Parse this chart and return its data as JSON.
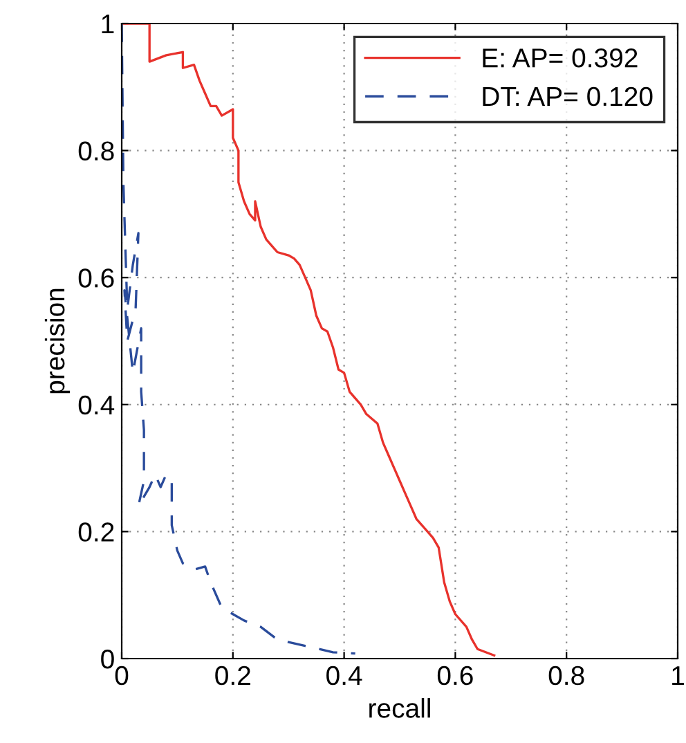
{
  "chart_data": {
    "type": "line",
    "xlabel": "recall",
    "ylabel": "precision",
    "xlim": [
      0,
      1
    ],
    "ylim": [
      0,
      1
    ],
    "xticks": [
      0,
      0.2,
      0.4,
      0.6,
      0.8,
      1
    ],
    "yticks": [
      0,
      0.2,
      0.4,
      0.6,
      0.8,
      1
    ],
    "grid": true,
    "legend": "top right",
    "series": [
      {
        "name": "E: AP= 0.392",
        "color": "#e8322c",
        "line_style": "solid",
        "x": [
          0,
          0.05,
          0.05,
          0.08,
          0.11,
          0.11,
          0.13,
          0.14,
          0.15,
          0.16,
          0.17,
          0.18,
          0.2,
          0.2,
          0.21,
          0.21,
          0.22,
          0.23,
          0.24,
          0.24,
          0.25,
          0.26,
          0.27,
          0.28,
          0.3,
          0.31,
          0.32,
          0.33,
          0.34,
          0.35,
          0.36,
          0.37,
          0.38,
          0.39,
          0.4,
          0.41,
          0.43,
          0.44,
          0.46,
          0.47,
          0.48,
          0.49,
          0.5,
          0.51,
          0.52,
          0.53,
          0.55,
          0.56,
          0.57,
          0.58,
          0.59,
          0.6,
          0.62,
          0.63,
          0.64,
          0.67
        ],
        "values": [
          1,
          1,
          0.94,
          0.95,
          0.955,
          0.93,
          0.935,
          0.91,
          0.89,
          0.87,
          0.87,
          0.855,
          0.865,
          0.82,
          0.8,
          0.75,
          0.72,
          0.7,
          0.69,
          0.72,
          0.68,
          0.66,
          0.65,
          0.64,
          0.635,
          0.63,
          0.62,
          0.6,
          0.58,
          0.54,
          0.52,
          0.515,
          0.49,
          0.455,
          0.45,
          0.42,
          0.4,
          0.385,
          0.37,
          0.34,
          0.32,
          0.3,
          0.28,
          0.26,
          0.24,
          0.22,
          0.2,
          0.19,
          0.175,
          0.12,
          0.09,
          0.07,
          0.05,
          0.03,
          0.015,
          0.005
        ]
      },
      {
        "name": "DT: AP= 0.120",
        "color": "#2a4b9b",
        "line_style": "dashed",
        "x": [
          0,
          0.003,
          0.01,
          0.02,
          0.03,
          0.025,
          0.01,
          0.005,
          0.02,
          0.035,
          0.035,
          0.04,
          0.04,
          0.03,
          0.05,
          0.06,
          0.07,
          0.08,
          0.09,
          0.09,
          0.1,
          0.11,
          0.13,
          0.15,
          0.16,
          0.18,
          0.2,
          0.22,
          0.25,
          0.28,
          0.33,
          0.38,
          0.42
        ],
        "values": [
          1,
          0.75,
          0.55,
          0.62,
          0.67,
          0.55,
          0.5,
          0.58,
          0.45,
          0.52,
          0.42,
          0.36,
          0.28,
          0.24,
          0.27,
          0.29,
          0.27,
          0.29,
          0.28,
          0.21,
          0.17,
          0.15,
          0.14,
          0.145,
          0.12,
          0.08,
          0.07,
          0.06,
          0.05,
          0.03,
          0.02,
          0.01,
          0.008
        ]
      }
    ]
  }
}
